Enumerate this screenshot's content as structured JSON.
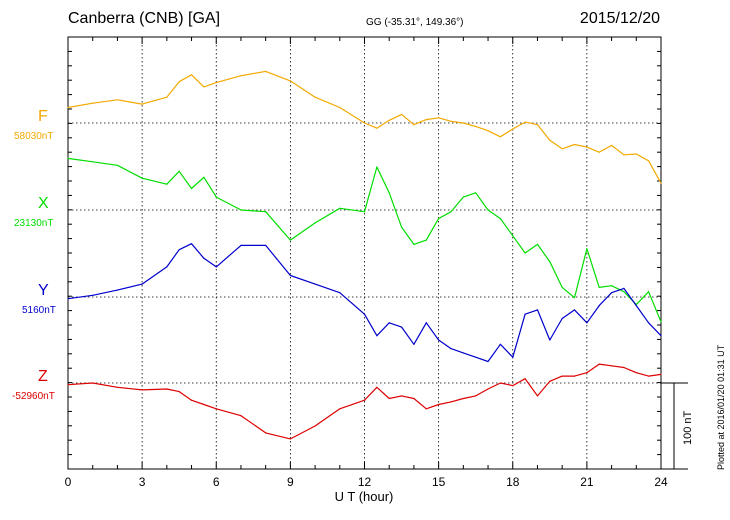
{
  "header": {
    "station": "Canberra (CNB)  [GA]",
    "coords": "GG (-35.31°, 149.36°)",
    "date": "2015/12/20"
  },
  "plotted_note": "Plotted at 2016/01/20 01:31  UT",
  "scale_bar_label": "100 nT",
  "colors": {
    "F": "#f2a900",
    "X": "#00dd00",
    "Y": "#0000cc",
    "Z": "#dd0000"
  },
  "chart_data": {
    "type": "line",
    "title": "Canberra (CNB)  [GA]",
    "xlabel": "U T (hour)",
    "ylabel": "",
    "xlim": [
      0,
      24
    ],
    "x_ticks": [
      "0",
      "3",
      "6",
      "9",
      "12",
      "15",
      "18",
      "21",
      "24"
    ],
    "grid": true,
    "scale_nT": 100,
    "x": [
      0,
      1,
      2,
      3,
      4,
      4.5,
      5,
      5.5,
      6,
      7,
      8,
      9,
      10,
      11,
      12,
      12.5,
      13,
      13.5,
      14,
      14.5,
      15,
      15.5,
      16,
      16.5,
      17,
      17.5,
      18,
      18.5,
      19,
      19.5,
      20,
      20.5,
      21,
      21.5,
      22,
      22.5,
      23,
      23.5,
      24
    ],
    "series": [
      {
        "name": "F",
        "baseline_label": "58030nT",
        "baseline_nT": 58030,
        "color": "#f2a900",
        "values": [
          58048,
          58053,
          58057,
          58052,
          58060,
          58078,
          58086,
          58072,
          58077,
          58085,
          58090,
          58079,
          58060,
          58048,
          58030,
          58024,
          58033,
          58040,
          58028,
          58034,
          58036,
          58032,
          58030,
          58026,
          58021,
          58014,
          58023,
          58031,
          58028,
          58010,
          58000,
          58005,
          58002,
          57996,
          58004,
          57993,
          57994,
          57986,
          57960
        ]
      },
      {
        "name": "X",
        "baseline_label": "23130nT",
        "baseline_nT": 23130,
        "color": "#00dd00",
        "values": [
          23190,
          23186,
          23182,
          23167,
          23160,
          23175,
          23155,
          23168,
          23145,
          23130,
          23128,
          23095,
          23115,
          23132,
          23128,
          23180,
          23150,
          23110,
          23090,
          23095,
          23120,
          23128,
          23145,
          23150,
          23130,
          23120,
          23100,
          23080,
          23090,
          23070,
          23040,
          23028,
          23085,
          23040,
          23042,
          23035,
          23020,
          23035,
          23000
        ]
      },
      {
        "name": "Y",
        "baseline_label": "5160nT",
        "baseline_nT": 5160,
        "color": "#0000cc",
        "values": [
          5158,
          5162,
          5168,
          5175,
          5195,
          5215,
          5222,
          5205,
          5195,
          5220,
          5220,
          5185,
          5175,
          5165,
          5140,
          5115,
          5130,
          5125,
          5105,
          5130,
          5110,
          5100,
          5095,
          5090,
          5085,
          5105,
          5090,
          5140,
          5145,
          5110,
          5135,
          5145,
          5130,
          5150,
          5165,
          5170,
          5150,
          5130,
          5115
        ]
      },
      {
        "name": "Z",
        "baseline_label": "-52960nT",
        "baseline_nT": -52960,
        "color": "#dd0000",
        "values": [
          -52962,
          -52960,
          -52965,
          -52968,
          -52967,
          -52970,
          -52980,
          -52985,
          -52990,
          -52998,
          -53018,
          -53025,
          -53010,
          -52990,
          -52980,
          -52965,
          -52978,
          -52975,
          -52978,
          -52990,
          -52985,
          -52982,
          -52978,
          -52975,
          -52967,
          -52960,
          -52963,
          -52955,
          -52975,
          -52958,
          -52952,
          -52952,
          -52948,
          -52938,
          -52940,
          -52942,
          -52948,
          -52952,
          -52950
        ]
      }
    ]
  }
}
